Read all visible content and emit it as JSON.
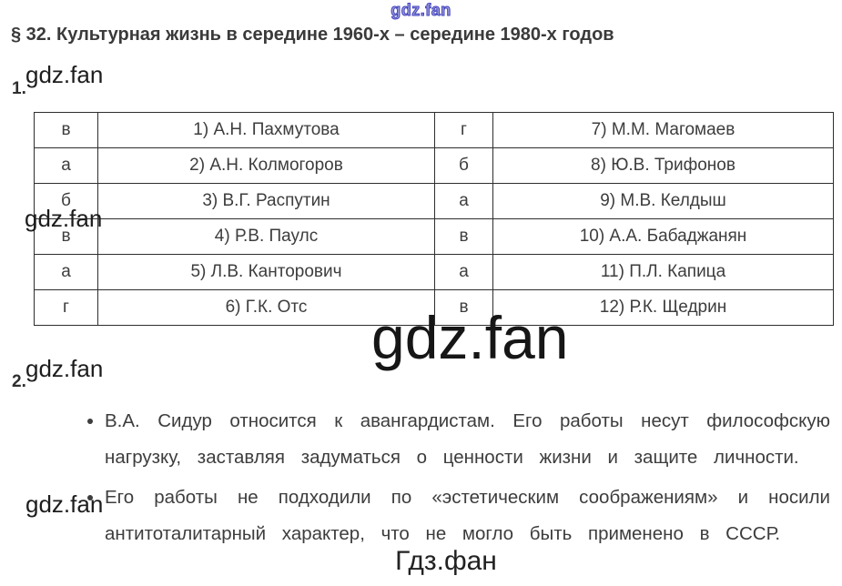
{
  "page": {
    "title": "§ 32. Культурная жизнь в середине 1960-х – середине 1980-х годов",
    "footer_brand": "Гдз.фан"
  },
  "watermarks": {
    "top": "gdz.fan",
    "inline_1": "gdz.fan",
    "inline_2": "gdz.fan",
    "inline_3": "gdz.fan",
    "inline_4": "gdz.fan",
    "big": "gdz.fan"
  },
  "section1": {
    "number": "1.",
    "table": {
      "rows": [
        {
          "left_key": "в",
          "left_name": "1) А.Н. Пахмутова",
          "right_key": "г",
          "right_name": "7) М.М. Магомаев"
        },
        {
          "left_key": "а",
          "left_name": "2) А.Н. Колмогоров",
          "right_key": "б",
          "right_name": "8) Ю.В. Трифонов"
        },
        {
          "left_key": "б",
          "left_name": "3) В.Г. Распутин",
          "right_key": "а",
          "right_name": "9) М.В. Келдыш"
        },
        {
          "left_key": "в",
          "left_name": "4) Р.В. Паулс",
          "right_key": "в",
          "right_name": "10) А.А. Бабаджанян"
        },
        {
          "left_key": "а",
          "left_name": "5) Л.В. Канторович",
          "right_key": "а",
          "right_name": "11) П.Л. Капица"
        },
        {
          "left_key": "г",
          "left_name": "6) Г.К. Отс",
          "right_key": "в",
          "right_name": "12) Р.К. Щедрин"
        }
      ]
    }
  },
  "section2": {
    "number": "2.",
    "bullets": [
      "В.А. Сидур относится к авангардистам. Его работы несут философскую нагрузку, заставляя задуматься о ценности жизни и защите личности.",
      "Его работы не подходили по «эстетическим соображениям» и носили антитоталитарный характер, что не могло быть применено в СССР."
    ]
  },
  "colors": {
    "watermark_blue": "#4343bf",
    "body_text": "#3d3d3d",
    "table_border": "#2e2e2e",
    "watermark_black": "#161616"
  }
}
